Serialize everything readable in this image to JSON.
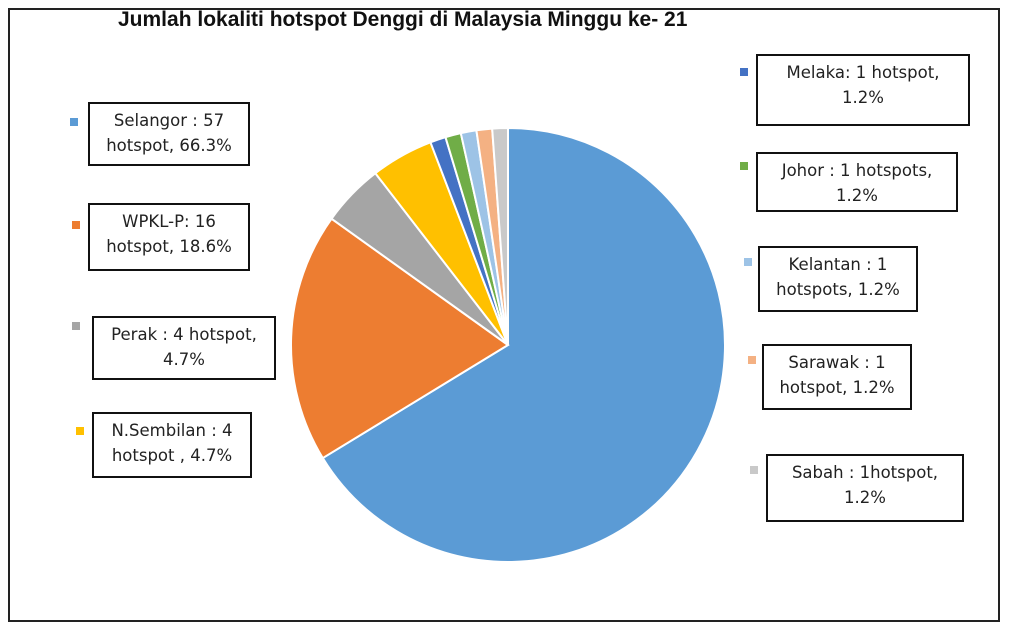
{
  "chart_data": {
    "type": "pie",
    "title": "Jumlah lokaliti hotspot Denggi di Malaysia Minggu ke- 21",
    "values": [
      57,
      16,
      4,
      4,
      1,
      1,
      1,
      1,
      1
    ],
    "value_labels": [
      "Selangor : 57\nhotspot, 66.3%",
      "WPKL-P:  16\nhotspot, 18.6%",
      "Perak : 4 hotspot,\n4.7%",
      "N.Sembilan : 4\nhotspot , 4.7%",
      "Melaka: 1 hotspot,\n1.2%",
      "Johor : 1 hotspots,\n1.2%",
      "Kelantan : 1\nhotspots, 1.2%",
      "Sarawak : 1\nhotspot, 1.2%",
      "Sabah :  1hotspot,\n1.2%"
    ],
    "colors": [
      "#5b9bd5",
      "#ed7d31",
      "#a5a5a5",
      "#ffc000",
      "#4472c4",
      "#70ad47",
      "#9dc3e6",
      "#f4b183",
      "#c9c9c9"
    ]
  }
}
